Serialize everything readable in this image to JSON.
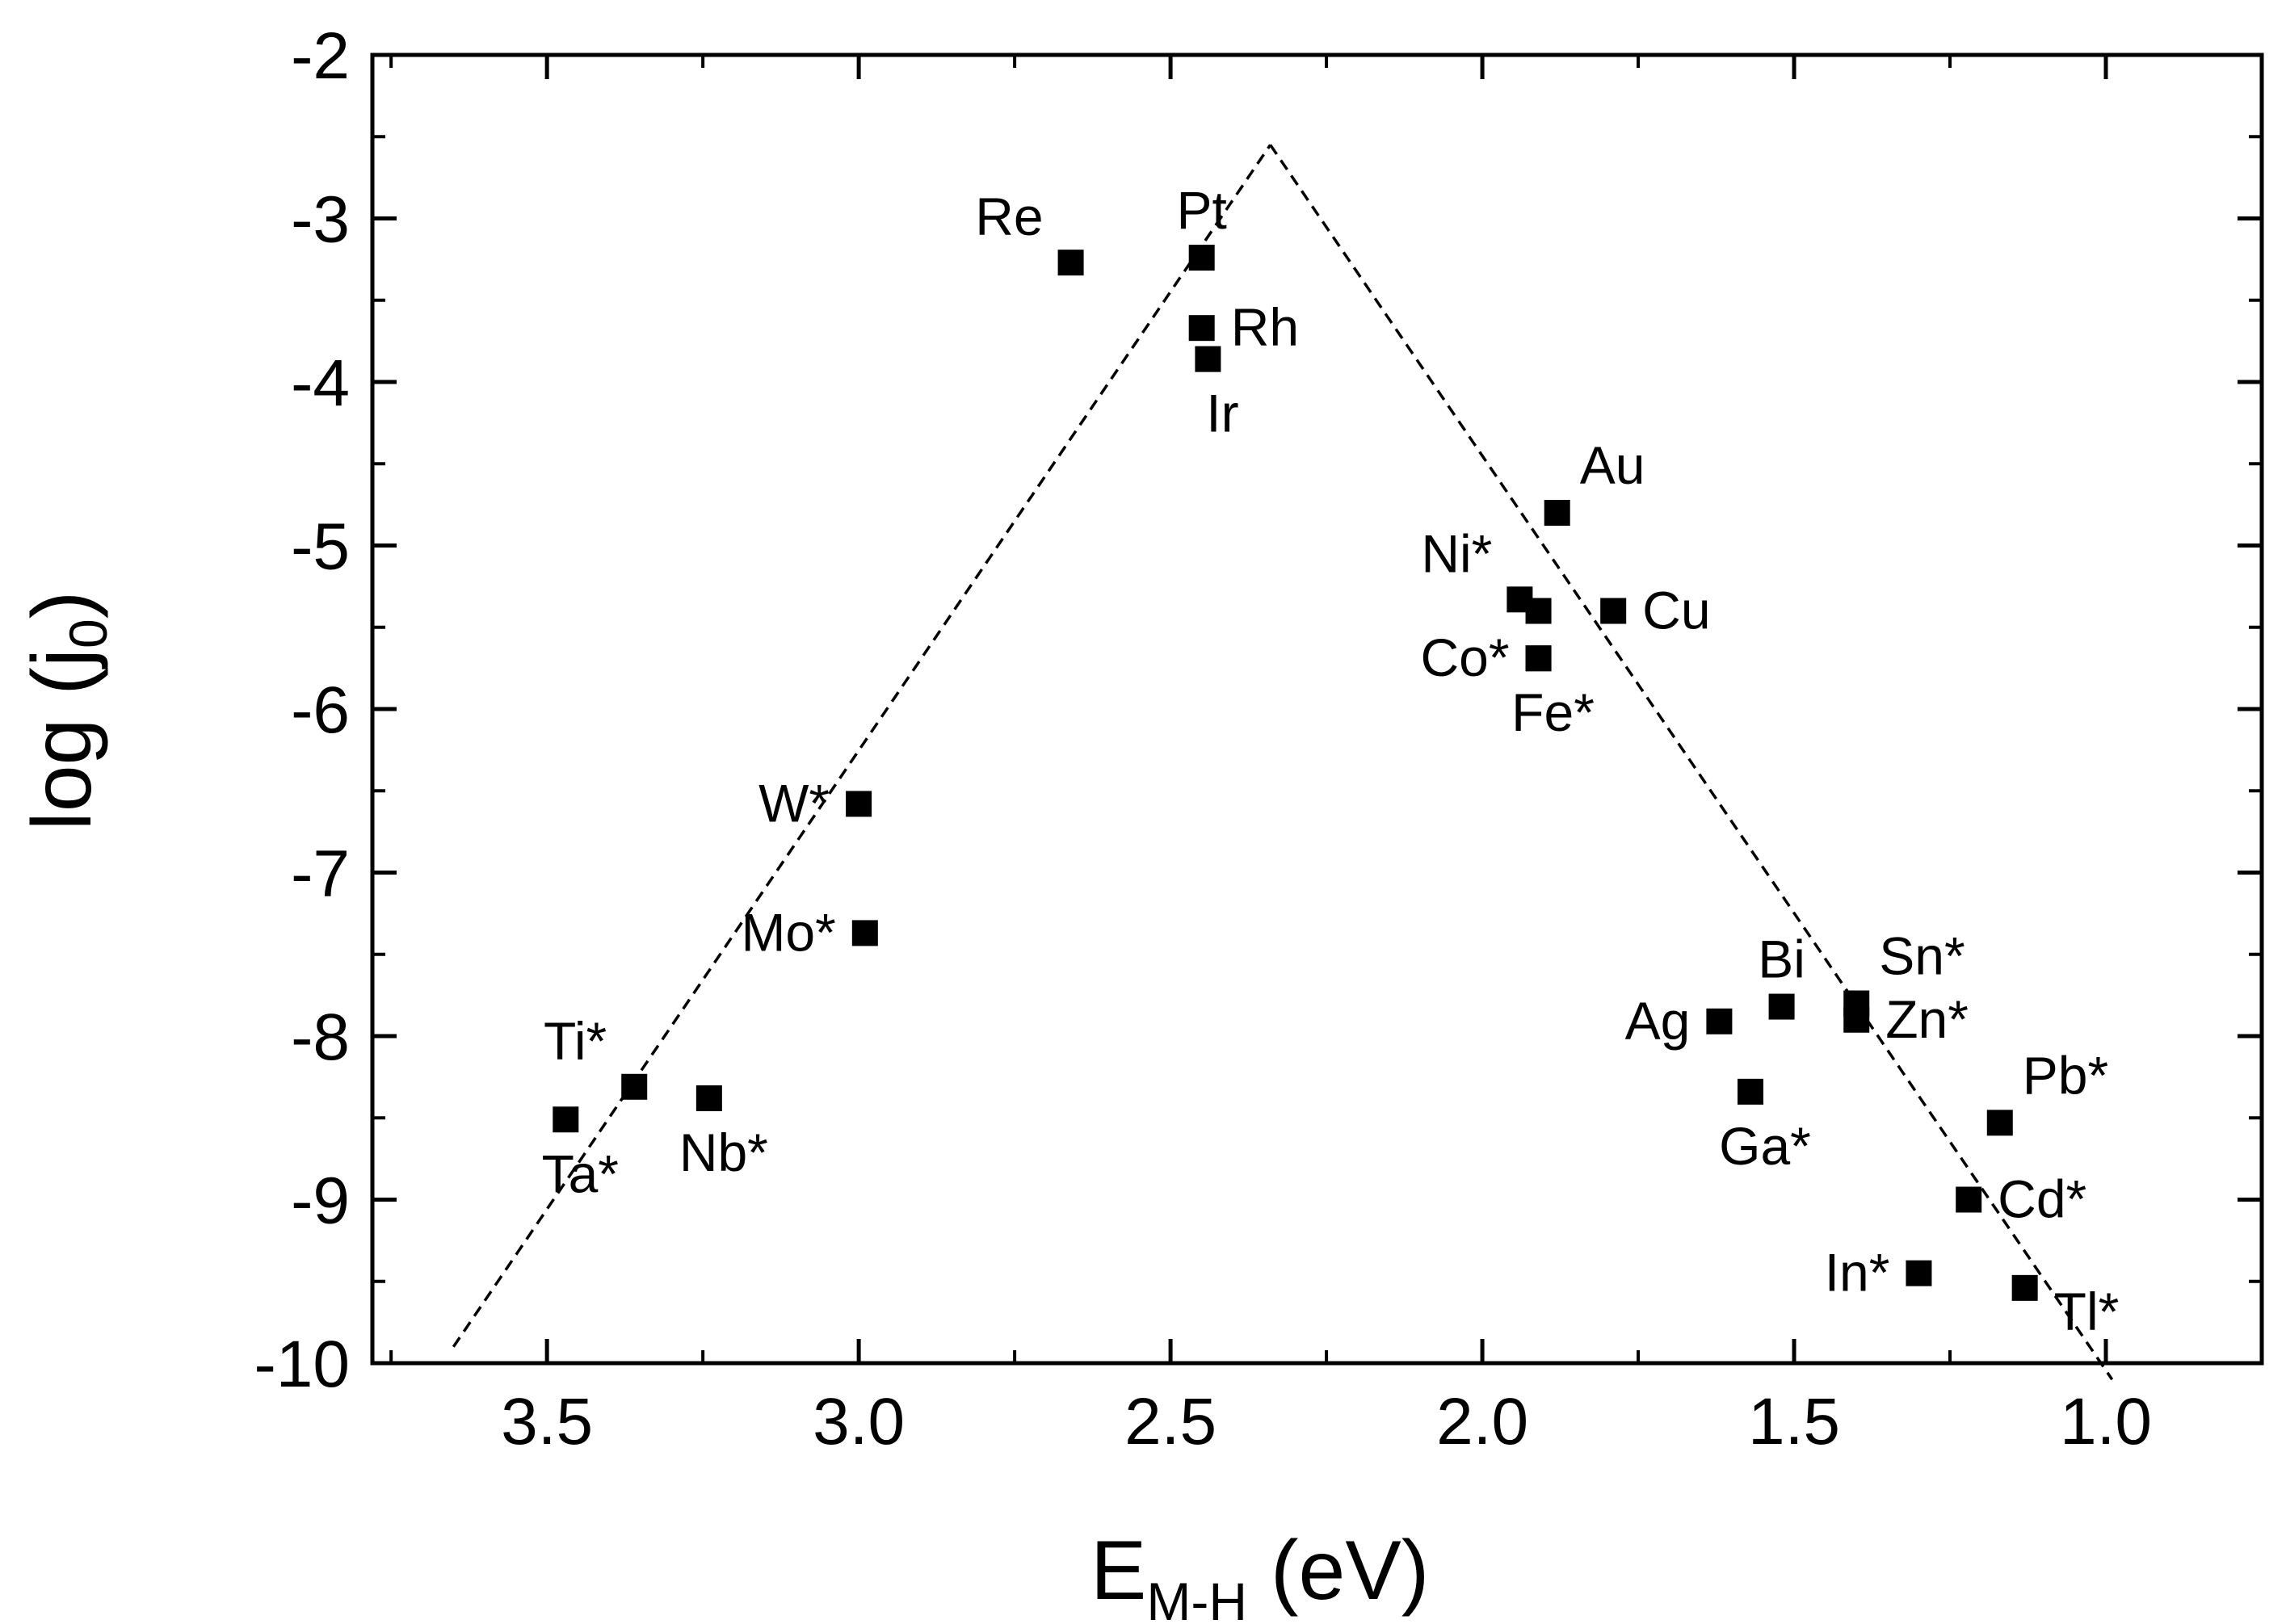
{
  "chart_data": {
    "type": "scatter",
    "title": "",
    "xlabel": {
      "main": "E",
      "subscript": "M-H",
      "unit": " (eV)"
    },
    "ylabel": {
      "main": "log (j",
      "subscript": "0",
      "close": ")"
    },
    "xlim": [
      3.78,
      0.75
    ],
    "ylim": [
      -10,
      -2
    ],
    "xticks": [
      3.5,
      3.0,
      2.5,
      2.0,
      1.5,
      1.0
    ],
    "xtick_labels": [
      "3.5",
      "3.0",
      "2.5",
      "2.0",
      "1.5",
      "1.0"
    ],
    "yticks": [
      -2,
      -3,
      -4,
      -5,
      -6,
      -7,
      -8,
      -9,
      -10
    ],
    "ytick_labels": [
      "-2",
      "-3",
      "-4",
      "-5",
      "-6",
      "-7",
      "-8",
      "-9",
      "-10"
    ],
    "grid": false,
    "points": [
      {
        "label": "Re",
        "x": 2.66,
        "y": -3.27,
        "label_pos": "upper-left"
      },
      {
        "label": "Pt",
        "x": 2.45,
        "y": -3.24,
        "label_pos": "above"
      },
      {
        "label": "Rh",
        "x": 2.45,
        "y": -3.67,
        "label_pos": "right"
      },
      {
        "label": "Ir",
        "x": 2.44,
        "y": -3.86,
        "label_pos": "below"
      },
      {
        "label": "Au",
        "x": 1.88,
        "y": -4.8,
        "label_pos": "upper-right"
      },
      {
        "label": "Ni*",
        "x": 1.94,
        "y": -5.33,
        "label_pos": "upper-left"
      },
      {
        "label": "",
        "x": 1.91,
        "y": -5.4,
        "label_pos": "none"
      },
      {
        "label": "Cu",
        "x": 1.79,
        "y": -5.4,
        "label_pos": "right"
      },
      {
        "label": "Co*",
        "x": 1.91,
        "y": -5.69,
        "label_pos": "left"
      },
      {
        "label": "Fe*",
        "x": 1.91,
        "y": -5.69,
        "label_pos": "below"
      },
      {
        "label": "W*",
        "x": 3.0,
        "y": -6.58,
        "label_pos": "left"
      },
      {
        "label": "Mo*",
        "x": 2.99,
        "y": -7.37,
        "label_pos": "left"
      },
      {
        "label": "Ti*",
        "x": 3.36,
        "y": -8.31,
        "label_pos": "upper-left"
      },
      {
        "label": "Ta*",
        "x": 3.47,
        "y": -8.51,
        "label_pos": "below"
      },
      {
        "label": "Nb*",
        "x": 3.24,
        "y": -8.38,
        "label_pos": "below"
      },
      {
        "label": "Bi",
        "x": 1.52,
        "y": -7.82,
        "label_pos": "above"
      },
      {
        "label": "Ag",
        "x": 1.62,
        "y": -7.91,
        "label_pos": "left"
      },
      {
        "label": "Sn*",
        "x": 1.4,
        "y": -7.8,
        "label_pos": "upper-right"
      },
      {
        "label": "Zn*",
        "x": 1.4,
        "y": -7.9,
        "label_pos": "right"
      },
      {
        "label": "Ga*",
        "x": 1.57,
        "y": -8.34,
        "label_pos": "below"
      },
      {
        "label": "Pb*",
        "x": 1.17,
        "y": -8.53,
        "label_pos": "upper-right"
      },
      {
        "label": "Cd*",
        "x": 1.22,
        "y": -9.0,
        "label_pos": "right"
      },
      {
        "label": "In*",
        "x": 1.3,
        "y": -9.45,
        "label_pos": "left"
      },
      {
        "label": "Tl*",
        "x": 1.13,
        "y": -9.54,
        "label_pos": "lower-right"
      }
    ],
    "fit_lines": [
      {
        "name": "left-branch",
        "style": "dashed",
        "x": [
          3.65,
          2.34
        ],
        "y": [
          -9.9,
          -2.55
        ]
      },
      {
        "name": "right-branch",
        "style": "dashed",
        "x": [
          2.34,
          0.99
        ],
        "y": [
          -2.55,
          -10.1
        ]
      }
    ]
  }
}
